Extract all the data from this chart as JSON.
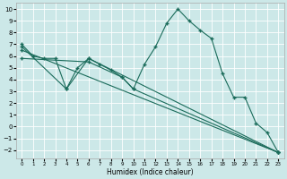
{
  "xlabel": "Humidex (Indice chaleur)",
  "background_color": "#cce8e8",
  "grid_color": "#ffffff",
  "line_color": "#1a6b5a",
  "xlim": [
    -0.5,
    23.5
  ],
  "ylim": [
    -2.7,
    10.5
  ],
  "xticks": [
    0,
    1,
    2,
    3,
    4,
    5,
    6,
    7,
    8,
    9,
    10,
    11,
    12,
    13,
    14,
    15,
    16,
    17,
    18,
    19,
    20,
    21,
    22,
    23
  ],
  "yticks": [
    -2,
    -1,
    0,
    1,
    2,
    3,
    4,
    5,
    6,
    7,
    8,
    9,
    10
  ],
  "line1_x": [
    0,
    1,
    2,
    3,
    4,
    5,
    6,
    7,
    8,
    9,
    10,
    11,
    12,
    13,
    14,
    15,
    16,
    17,
    18,
    19,
    20,
    21,
    22,
    23
  ],
  "line1_y": [
    7.0,
    6.0,
    5.8,
    5.8,
    3.2,
    5.0,
    5.8,
    5.3,
    4.8,
    4.2,
    3.2,
    5.3,
    6.8,
    8.8,
    10.0,
    9.0,
    8.2,
    7.5,
    4.5,
    2.5,
    2.5,
    0.3,
    -0.5,
    -2.2
  ],
  "line2_x": [
    0,
    4,
    6,
    23
  ],
  "line2_y": [
    6.8,
    3.2,
    5.8,
    -2.2
  ],
  "line3_x": [
    0,
    23
  ],
  "line3_y": [
    6.5,
    -2.2
  ],
  "line4_x": [
    0,
    6,
    9,
    10,
    23
  ],
  "line4_y": [
    5.8,
    5.5,
    4.2,
    3.2,
    -2.2
  ]
}
